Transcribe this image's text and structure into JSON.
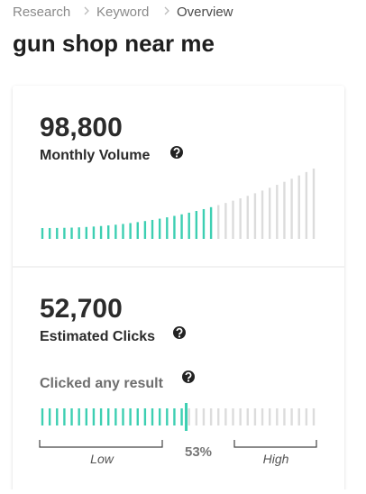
{
  "breadcrumb": [
    "Research",
    "Keyword",
    "Overview"
  ],
  "title": "gun shop near me",
  "volume": {
    "value": "98,800",
    "label": "Monthly Volume"
  },
  "clicks": {
    "value": "52,700",
    "label": "Estimated Clicks",
    "clicked_any_result": {
      "label": "Clicked any result",
      "percent": {
        "value": 53,
        "label": "53%"
      },
      "low": "Low",
      "high": "High"
    }
  }
}
